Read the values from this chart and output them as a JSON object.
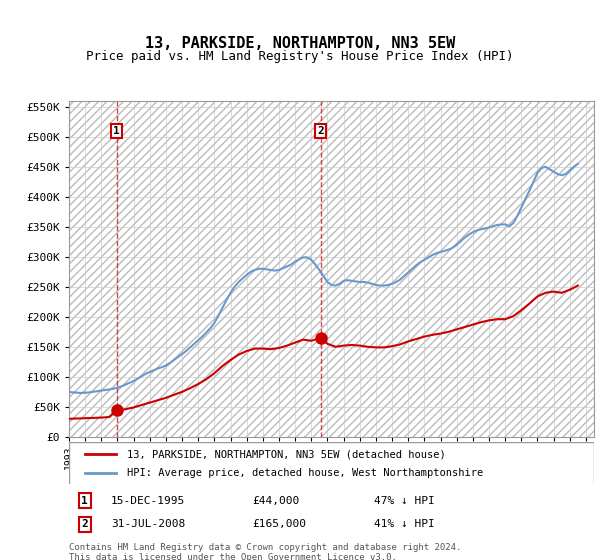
{
  "title": "13, PARKSIDE, NORTHAMPTON, NN3 5EW",
  "subtitle": "Price paid vs. HM Land Registry's House Price Index (HPI)",
  "ylabel_ticks": [
    0,
    50000,
    100000,
    150000,
    200000,
    250000,
    300000,
    350000,
    400000,
    450000,
    500000,
    550000
  ],
  "ylabel_labels": [
    "£0",
    "£50K",
    "£100K",
    "£150K",
    "£200K",
    "£250K",
    "£300K",
    "£350K",
    "£400K",
    "£450K",
    "£500K",
    "£550K"
  ],
  "ylim": [
    0,
    560000
  ],
  "xlim_start": 1993.0,
  "xlim_end": 2025.5,
  "sale1_date": 1995.96,
  "sale1_price": 44000,
  "sale2_date": 2008.58,
  "sale2_price": 165000,
  "sale1_label": "1",
  "sale2_label": "2",
  "legend_line1": "13, PARKSIDE, NORTHAMPTON, NN3 5EW (detached house)",
  "legend_line2": "HPI: Average price, detached house, West Northamptonshire",
  "table_row1": [
    "1",
    "15-DEC-1995",
    "£44,000",
    "47% ↓ HPI"
  ],
  "table_row2": [
    "2",
    "31-JUL-2008",
    "£165,000",
    "41% ↓ HPI"
  ],
  "footer1": "Contains HM Land Registry data © Crown copyright and database right 2024.",
  "footer2": "This data is licensed under the Open Government Licence v3.0.",
  "background_hatch_color": "#d0d0d0",
  "grid_color": "#cccccc",
  "red_line_color": "#cc0000",
  "blue_line_color": "#6699cc",
  "title_fontsize": 11,
  "subtitle_fontsize": 9,
  "hpi_data_x": [
    1993.0,
    1993.25,
    1993.5,
    1993.75,
    1994.0,
    1994.25,
    1994.5,
    1994.75,
    1995.0,
    1995.25,
    1995.5,
    1995.75,
    1996.0,
    1996.25,
    1996.5,
    1996.75,
    1997.0,
    1997.25,
    1997.5,
    1997.75,
    1998.0,
    1998.25,
    1998.5,
    1998.75,
    1999.0,
    1999.25,
    1999.5,
    1999.75,
    2000.0,
    2000.25,
    2000.5,
    2000.75,
    2001.0,
    2001.25,
    2001.5,
    2001.75,
    2002.0,
    2002.25,
    2002.5,
    2002.75,
    2003.0,
    2003.25,
    2003.5,
    2003.75,
    2004.0,
    2004.25,
    2004.5,
    2004.75,
    2005.0,
    2005.25,
    2005.5,
    2005.75,
    2006.0,
    2006.25,
    2006.5,
    2006.75,
    2007.0,
    2007.25,
    2007.5,
    2007.75,
    2008.0,
    2008.25,
    2008.5,
    2008.75,
    2009.0,
    2009.25,
    2009.5,
    2009.75,
    2010.0,
    2010.25,
    2010.5,
    2010.75,
    2011.0,
    2011.25,
    2011.5,
    2011.75,
    2012.0,
    2012.25,
    2012.5,
    2012.75,
    2013.0,
    2013.25,
    2013.5,
    2013.75,
    2014.0,
    2014.25,
    2014.5,
    2014.75,
    2015.0,
    2015.25,
    2015.5,
    2015.75,
    2016.0,
    2016.25,
    2016.5,
    2016.75,
    2017.0,
    2017.25,
    2017.5,
    2017.75,
    2018.0,
    2018.25,
    2018.5,
    2018.75,
    2019.0,
    2019.25,
    2019.5,
    2019.75,
    2020.0,
    2020.25,
    2020.5,
    2020.75,
    2021.0,
    2021.25,
    2021.5,
    2021.75,
    2022.0,
    2022.25,
    2022.5,
    2022.75,
    2023.0,
    2023.25,
    2023.5,
    2023.75,
    2024.0,
    2024.25,
    2024.5
  ],
  "hpi_data_y": [
    75000,
    74000,
    73500,
    73000,
    73500,
    74000,
    75000,
    76000,
    77000,
    78000,
    79000,
    80000,
    82000,
    84000,
    87000,
    90000,
    93000,
    97000,
    101000,
    105000,
    108000,
    111000,
    114000,
    116000,
    119000,
    123000,
    128000,
    133000,
    138000,
    143000,
    149000,
    155000,
    161000,
    167000,
    174000,
    181000,
    190000,
    202000,
    215000,
    228000,
    240000,
    250000,
    258000,
    264000,
    270000,
    275000,
    278000,
    280000,
    280000,
    279000,
    278000,
    277000,
    278000,
    281000,
    284000,
    287000,
    292000,
    296000,
    299000,
    299000,
    295000,
    287000,
    278000,
    268000,
    258000,
    253000,
    252000,
    255000,
    260000,
    261000,
    260000,
    259000,
    258000,
    258000,
    257000,
    255000,
    253000,
    252000,
    252000,
    253000,
    255000,
    258000,
    262000,
    268000,
    274000,
    280000,
    286000,
    291000,
    295000,
    299000,
    303000,
    306000,
    308000,
    310000,
    312000,
    315000,
    320000,
    326000,
    332000,
    337000,
    341000,
    344000,
    346000,
    347000,
    349000,
    351000,
    353000,
    354000,
    354000,
    351000,
    356000,
    368000,
    382000,
    396000,
    410000,
    425000,
    440000,
    448000,
    450000,
    446000,
    442000,
    438000,
    436000,
    438000,
    444000,
    450000,
    455000
  ],
  "red_data_x": [
    1993.0,
    1993.5,
    1994.0,
    1994.5,
    1995.0,
    1995.5,
    1995.96,
    1996.5,
    1997.0,
    1997.5,
    1998.0,
    1998.5,
    1999.0,
    1999.5,
    2000.0,
    2000.5,
    2001.0,
    2001.5,
    2002.0,
    2002.5,
    2003.0,
    2003.5,
    2004.0,
    2004.5,
    2005.0,
    2005.5,
    2006.0,
    2006.5,
    2007.0,
    2007.5,
    2008.0,
    2008.58,
    2009.0,
    2009.5,
    2010.0,
    2010.5,
    2011.0,
    2011.5,
    2012.0,
    2012.5,
    2013.0,
    2013.5,
    2014.0,
    2014.5,
    2015.0,
    2015.5,
    2016.0,
    2016.5,
    2017.0,
    2017.5,
    2018.0,
    2018.5,
    2019.0,
    2019.5,
    2020.0,
    2020.5,
    2021.0,
    2021.5,
    2022.0,
    2022.5,
    2023.0,
    2023.5,
    2024.0,
    2024.5
  ],
  "red_data_y": [
    30000,
    30500,
    31000,
    31500,
    32000,
    33000,
    44000,
    46000,
    49000,
    53000,
    57000,
    61000,
    65000,
    70000,
    75000,
    81000,
    88000,
    96000,
    106000,
    118000,
    128000,
    137000,
    143000,
    147000,
    147000,
    146000,
    148000,
    152000,
    157000,
    162000,
    160000,
    165000,
    155000,
    150000,
    152000,
    153000,
    152000,
    150000,
    149000,
    149000,
    151000,
    154000,
    159000,
    163000,
    167000,
    170000,
    172000,
    175000,
    179000,
    183000,
    187000,
    191000,
    194000,
    196000,
    196000,
    201000,
    211000,
    222000,
    234000,
    240000,
    242000,
    240000,
    245000,
    252000
  ]
}
